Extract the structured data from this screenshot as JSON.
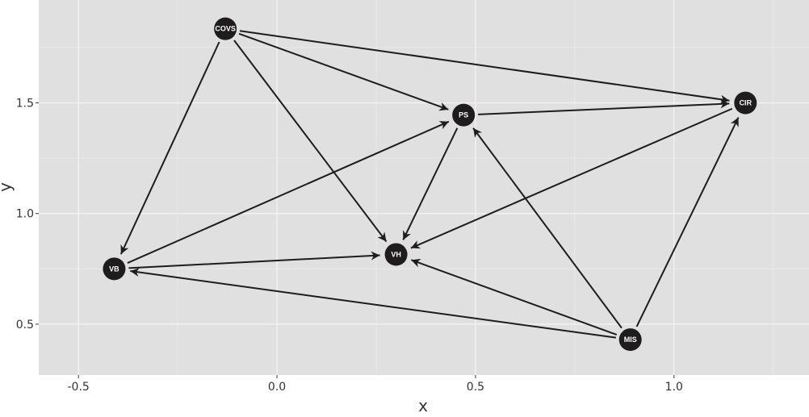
{
  "chart_data": {
    "type": "network",
    "xlabel": "x",
    "ylabel": "y",
    "xlim": [
      -0.6,
      1.34
    ],
    "ylim": [
      0.27,
      1.965
    ],
    "x_ticks": [
      -0.5,
      0.0,
      0.5,
      1.0
    ],
    "x_tick_labels": [
      "-0.5",
      "0.0",
      "0.5",
      "1.0"
    ],
    "y_ticks": [
      0.5,
      1.0,
      1.5
    ],
    "y_tick_labels": [
      "0.5",
      "1.0",
      "1.5"
    ],
    "x_minor_ticks": [
      -0.25,
      0.25,
      0.75,
      1.25
    ],
    "y_minor_ticks": [
      0.75,
      1.25,
      1.75
    ],
    "grid": true,
    "nodes": [
      {
        "id": "COVS",
        "label": "COVS",
        "x": -0.13,
        "y": 1.835
      },
      {
        "id": "PS",
        "label": "PS",
        "x": 0.47,
        "y": 1.445
      },
      {
        "id": "CIR",
        "label": "CIR",
        "x": 1.18,
        "y": 1.5
      },
      {
        "id": "VB",
        "label": "VB",
        "x": -0.41,
        "y": 0.75
      },
      {
        "id": "VH",
        "label": "VH",
        "x": 0.3,
        "y": 0.815
      },
      {
        "id": "MIS",
        "label": "MIS",
        "x": 0.89,
        "y": 0.43
      }
    ],
    "edges": [
      {
        "from": "COVS",
        "to": "CIR"
      },
      {
        "from": "COVS",
        "to": "PS"
      },
      {
        "from": "COVS",
        "to": "VB"
      },
      {
        "from": "COVS",
        "to": "VH"
      },
      {
        "from": "PS",
        "to": "CIR"
      },
      {
        "from": "PS",
        "to": "VH"
      },
      {
        "from": "CIR",
        "to": "VH"
      },
      {
        "from": "VB",
        "to": "PS"
      },
      {
        "from": "VB",
        "to": "VH"
      },
      {
        "from": "MIS",
        "to": "VB"
      },
      {
        "from": "MIS",
        "to": "VH"
      },
      {
        "from": "MIS",
        "to": "PS"
      },
      {
        "from": "MIS",
        "to": "CIR"
      }
    ],
    "colors": {
      "panel": "#e0e0e0",
      "grid_major": "#f5f5f5",
      "grid_minor": "#ececec",
      "node": "#1e1c1c",
      "edge": "#1e1c1c",
      "node_text": "#ffffff"
    }
  }
}
